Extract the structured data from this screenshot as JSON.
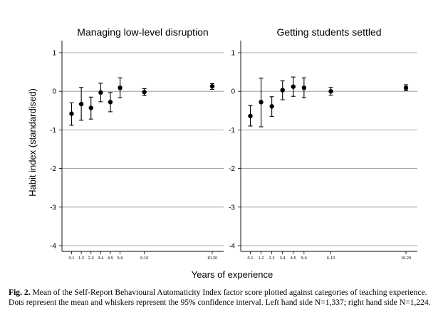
{
  "figure": {
    "ylabel": "Habit index (standardised)",
    "xlabel": "Years of experience"
  },
  "caption": {
    "label": "Fig. 2.",
    "text": " Mean of the Self-Report Behavioural Automaticity Index factor score plotted against categories of teaching experience. Dots represent the mean and whiskers represent the 95% confidence interval. Left hand side N=1,337; right hand side N=1,224."
  },
  "chart_data": [
    {
      "type": "scatter",
      "title": "Managing low-level disruption",
      "xlabel": "Years of experience",
      "ylabel": "Habit index (standardised)",
      "ylim": [
        -4,
        1
      ],
      "yticks": [
        1,
        0,
        -1,
        -2,
        -3,
        -4
      ],
      "grid": "horizontal",
      "x": [
        0.5,
        1.5,
        2.5,
        3.5,
        4.5,
        5.5,
        8,
        15
      ],
      "x_tick_labels": [
        "0-1",
        "1-2",
        "2-3",
        "3-4",
        "4-5",
        "5-6",
        "6-10",
        "10-20"
      ],
      "mean": [
        -0.58,
        -0.33,
        -0.43,
        -0.03,
        -0.28,
        0.09,
        -0.02,
        0.13
      ],
      "ci_low": [
        -0.88,
        -0.75,
        -0.72,
        -0.27,
        -0.53,
        -0.17,
        -0.11,
        0.05
      ],
      "ci_high": [
        -0.3,
        0.1,
        -0.15,
        0.21,
        -0.03,
        0.35,
        0.07,
        0.2
      ]
    },
    {
      "type": "scatter",
      "title": "Getting students settled",
      "xlabel": "Years of experience",
      "ylabel": "Habit index (standardised)",
      "ylim": [
        -4,
        1
      ],
      "yticks": [
        1,
        0,
        -1,
        -2,
        -3,
        -4
      ],
      "grid": "horizontal",
      "x": [
        0.5,
        1.5,
        2.5,
        3.5,
        4.5,
        5.5,
        8,
        15
      ],
      "x_tick_labels": [
        "0-1",
        "1-2",
        "2-3",
        "3-4",
        "4-5",
        "5-6",
        "6-10",
        "10-20"
      ],
      "mean": [
        -0.64,
        -0.28,
        -0.39,
        0.03,
        0.12,
        0.09,
        0.0,
        0.09
      ],
      "ci_low": [
        -0.9,
        -0.92,
        -0.65,
        -0.22,
        -0.13,
        -0.17,
        -0.1,
        0.02
      ],
      "ci_high": [
        -0.37,
        0.34,
        -0.14,
        0.27,
        0.37,
        0.35,
        0.1,
        0.17
      ]
    }
  ]
}
